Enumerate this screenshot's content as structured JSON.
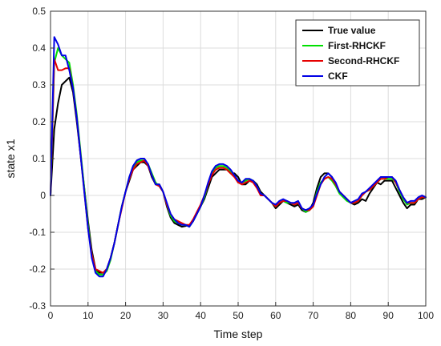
{
  "chart_data": {
    "type": "line",
    "xlabel": "Time step",
    "ylabel": "state x1",
    "xlim": [
      0,
      100
    ],
    "ylim": [
      -0.3,
      0.5
    ],
    "xticks": [
      0,
      10,
      20,
      30,
      40,
      50,
      60,
      70,
      80,
      90,
      100
    ],
    "yticks": [
      -0.3,
      -0.2,
      -0.1,
      0,
      0.1,
      0.2,
      0.3,
      0.4,
      0.5
    ],
    "grid": true,
    "legend_position": "top-right",
    "x": [
      0,
      1,
      2,
      3,
      4,
      5,
      6,
      7,
      8,
      9,
      10,
      11,
      12,
      13,
      14,
      15,
      16,
      17,
      18,
      19,
      20,
      21,
      22,
      23,
      24,
      25,
      26,
      27,
      28,
      29,
      30,
      31,
      32,
      33,
      34,
      35,
      36,
      37,
      38,
      39,
      40,
      41,
      42,
      43,
      44,
      45,
      46,
      47,
      48,
      49,
      50,
      51,
      52,
      53,
      54,
      55,
      56,
      57,
      58,
      59,
      60,
      61,
      62,
      63,
      64,
      65,
      66,
      67,
      68,
      69,
      70,
      71,
      72,
      73,
      74,
      75,
      76,
      77,
      78,
      79,
      80,
      81,
      82,
      83,
      84,
      85,
      86,
      87,
      88,
      89,
      90,
      91,
      92,
      93,
      94,
      95,
      96,
      97,
      98,
      99,
      100
    ],
    "series": [
      {
        "name": "True value",
        "color": "#000000",
        "values": [
          0,
          0.18,
          0.25,
          0.3,
          0.31,
          0.32,
          0.28,
          0.2,
          0.11,
          0.02,
          -0.07,
          -0.15,
          -0.2,
          -0.21,
          -0.21,
          -0.2,
          -0.17,
          -0.13,
          -0.08,
          -0.03,
          0.01,
          0.04,
          0.07,
          0.08,
          0.09,
          0.09,
          0.08,
          0.05,
          0.03,
          0.03,
          0.01,
          -0.03,
          -0.06,
          -0.075,
          -0.08,
          -0.085,
          -0.083,
          -0.08,
          -0.07,
          -0.05,
          -0.03,
          -0.01,
          0.02,
          0.05,
          0.06,
          0.07,
          0.07,
          0.07,
          0.06,
          0.06,
          0.05,
          0.03,
          0.03,
          0.04,
          0.04,
          0.03,
          0.01,
          0.0,
          -0.01,
          -0.02,
          -0.035,
          -0.025,
          -0.015,
          -0.02,
          -0.025,
          -0.03,
          -0.025,
          -0.04,
          -0.045,
          -0.04,
          -0.02,
          0.02,
          0.05,
          0.06,
          0.06,
          0.05,
          0.03,
          0.01,
          0.0,
          -0.01,
          -0.02,
          -0.025,
          -0.02,
          -0.01,
          -0.015,
          0.005,
          0.02,
          0.035,
          0.03,
          0.04,
          0.04,
          0.04,
          0.02,
          0.0,
          -0.02,
          -0.035,
          -0.025,
          -0.025,
          -0.01,
          -0.01,
          -0.005
        ]
      },
      {
        "name": "First-RHCKF",
        "color": "#00e000",
        "values": [
          0,
          0.36,
          0.4,
          0.38,
          0.37,
          0.36,
          0.3,
          0.22,
          0.12,
          0.02,
          -0.08,
          -0.16,
          -0.205,
          -0.215,
          -0.215,
          -0.205,
          -0.175,
          -0.13,
          -0.08,
          -0.03,
          0.01,
          0.05,
          0.075,
          0.09,
          0.095,
          0.095,
          0.085,
          0.06,
          0.035,
          0.025,
          0.01,
          -0.025,
          -0.055,
          -0.07,
          -0.075,
          -0.08,
          -0.08,
          -0.085,
          -0.07,
          -0.05,
          -0.03,
          -0.005,
          0.03,
          0.06,
          0.075,
          0.08,
          0.08,
          0.075,
          0.065,
          0.055,
          0.035,
          0.035,
          0.04,
          0.045,
          0.04,
          0.025,
          0.005,
          0.0,
          -0.01,
          -0.02,
          -0.03,
          -0.02,
          -0.015,
          -0.02,
          -0.02,
          -0.025,
          -0.02,
          -0.035,
          -0.045,
          -0.04,
          -0.03,
          0.01,
          0.035,
          0.045,
          0.05,
          0.04,
          0.025,
          0.005,
          -0.005,
          -0.015,
          -0.02,
          -0.02,
          -0.015,
          0.0,
          0.01,
          0.015,
          0.025,
          0.035,
          0.045,
          0.045,
          0.045,
          0.045,
          0.035,
          0.01,
          -0.01,
          -0.025,
          -0.02,
          -0.02,
          -0.01,
          -0.005,
          -0.005
        ]
      },
      {
        "name": "Second-RHCKF",
        "color": "#e60000",
        "values": [
          0,
          0.37,
          0.34,
          0.34,
          0.345,
          0.345,
          0.29,
          0.21,
          0.11,
          0.01,
          -0.09,
          -0.16,
          -0.2,
          -0.205,
          -0.21,
          -0.2,
          -0.17,
          -0.13,
          -0.08,
          -0.035,
          0.01,
          0.045,
          0.07,
          0.085,
          0.09,
          0.095,
          0.08,
          0.055,
          0.03,
          0.025,
          0.01,
          -0.025,
          -0.05,
          -0.065,
          -0.07,
          -0.075,
          -0.08,
          -0.08,
          -0.065,
          -0.045,
          -0.025,
          0.0,
          0.03,
          0.055,
          0.07,
          0.075,
          0.075,
          0.07,
          0.06,
          0.05,
          0.035,
          0.03,
          0.035,
          0.04,
          0.035,
          0.02,
          0.0,
          0.0,
          -0.01,
          -0.02,
          -0.03,
          -0.02,
          -0.015,
          -0.015,
          -0.02,
          -0.025,
          -0.02,
          -0.035,
          -0.04,
          -0.04,
          -0.03,
          0.0,
          0.03,
          0.045,
          0.05,
          0.045,
          0.03,
          0.01,
          0.0,
          -0.01,
          -0.02,
          -0.02,
          -0.015,
          0.0,
          0.01,
          0.015,
          0.025,
          0.035,
          0.045,
          0.045,
          0.05,
          0.05,
          0.035,
          0.015,
          -0.005,
          -0.02,
          -0.02,
          -0.02,
          -0.01,
          -0.005,
          -0.005
        ]
      },
      {
        "name": "CKF",
        "color": "#0000e6",
        "values": [
          0,
          0.43,
          0.41,
          0.38,
          0.38,
          0.34,
          0.29,
          0.21,
          0.11,
          0.01,
          -0.09,
          -0.17,
          -0.21,
          -0.22,
          -0.22,
          -0.2,
          -0.17,
          -0.13,
          -0.08,
          -0.03,
          0.01,
          0.05,
          0.08,
          0.095,
          0.1,
          0.1,
          0.085,
          0.055,
          0.03,
          0.03,
          0.01,
          -0.02,
          -0.05,
          -0.065,
          -0.075,
          -0.08,
          -0.08,
          -0.085,
          -0.07,
          -0.05,
          -0.03,
          0.0,
          0.035,
          0.065,
          0.08,
          0.085,
          0.085,
          0.08,
          0.07,
          0.055,
          0.04,
          0.035,
          0.045,
          0.045,
          0.04,
          0.025,
          0.005,
          0.0,
          -0.01,
          -0.02,
          -0.025,
          -0.015,
          -0.01,
          -0.015,
          -0.02,
          -0.02,
          -0.015,
          -0.035,
          -0.04,
          -0.035,
          -0.025,
          0.005,
          0.03,
          0.05,
          0.06,
          0.05,
          0.035,
          0.01,
          0.0,
          -0.01,
          -0.02,
          -0.015,
          -0.01,
          0.005,
          0.01,
          0.02,
          0.03,
          0.04,
          0.05,
          0.05,
          0.05,
          0.05,
          0.04,
          0.015,
          -0.005,
          -0.02,
          -0.015,
          -0.015,
          -0.005,
          0.0,
          -0.005
        ]
      }
    ]
  }
}
